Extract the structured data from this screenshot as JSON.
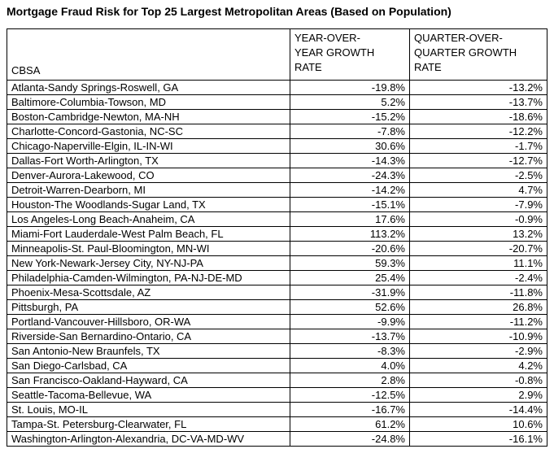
{
  "title": "Mortgage Fraud Risk for Top 25 Largest Metropolitan Areas (Based on Population)",
  "colors": {
    "text": "#000000",
    "border": "#000000",
    "background": "#ffffff"
  },
  "chart_data": {
    "type": "table",
    "title": "Mortgage Fraud Risk for Top 25 Largest Metropolitan Areas (Based on Population)",
    "columns": [
      {
        "id": "cbsa",
        "label": "CBSA"
      },
      {
        "id": "yoy",
        "label": "YEAR-OVER-\nYEAR GROWTH\nRATE"
      },
      {
        "id": "qoq",
        "label": "QUARTER-OVER-\nQUARTER GROWTH\nRATE"
      }
    ],
    "rows": [
      {
        "cbsa": "Atlanta-Sandy Springs-Roswell, GA",
        "yoy": "-19.8%",
        "qoq": "-13.2%"
      },
      {
        "cbsa": "Baltimore-Columbia-Towson, MD",
        "yoy": "5.2%",
        "qoq": "-13.7%"
      },
      {
        "cbsa": "Boston-Cambridge-Newton, MA-NH",
        "yoy": "-15.2%",
        "qoq": "-18.6%"
      },
      {
        "cbsa": "Charlotte-Concord-Gastonia, NC-SC",
        "yoy": "-7.8%",
        "qoq": "-12.2%"
      },
      {
        "cbsa": "Chicago-Naperville-Elgin, IL-IN-WI",
        "yoy": "30.6%",
        "qoq": "-1.7%"
      },
      {
        "cbsa": "Dallas-Fort Worth-Arlington, TX",
        "yoy": "-14.3%",
        "qoq": "-12.7%"
      },
      {
        "cbsa": "Denver-Aurora-Lakewood, CO",
        "yoy": "-24.3%",
        "qoq": "-2.5%"
      },
      {
        "cbsa": "Detroit-Warren-Dearborn, MI",
        "yoy": "-14.2%",
        "qoq": "4.7%"
      },
      {
        "cbsa": "Houston-The Woodlands-Sugar Land, TX",
        "yoy": "-15.1%",
        "qoq": "-7.9%"
      },
      {
        "cbsa": "Los Angeles-Long Beach-Anaheim, CA",
        "yoy": "17.6%",
        "qoq": "-0.9%"
      },
      {
        "cbsa": "Miami-Fort Lauderdale-West Palm Beach, FL",
        "yoy": "113.2%",
        "qoq": "13.2%"
      },
      {
        "cbsa": "Minneapolis-St. Paul-Bloomington, MN-WI",
        "yoy": "-20.6%",
        "qoq": "-20.7%"
      },
      {
        "cbsa": "New York-Newark-Jersey City, NY-NJ-PA",
        "yoy": "59.3%",
        "qoq": "11.1%"
      },
      {
        "cbsa": "Philadelphia-Camden-Wilmington, PA-NJ-DE-MD",
        "yoy": "25.4%",
        "qoq": "-2.4%"
      },
      {
        "cbsa": "Phoenix-Mesa-Scottsdale, AZ",
        "yoy": "-31.9%",
        "qoq": "-11.8%"
      },
      {
        "cbsa": "Pittsburgh, PA",
        "yoy": "52.6%",
        "qoq": "26.8%"
      },
      {
        "cbsa": "Portland-Vancouver-Hillsboro, OR-WA",
        "yoy": "-9.9%",
        "qoq": "-11.2%"
      },
      {
        "cbsa": "Riverside-San Bernardino-Ontario, CA",
        "yoy": "-13.7%",
        "qoq": "-10.9%"
      },
      {
        "cbsa": "San Antonio-New Braunfels, TX",
        "yoy": "-8.3%",
        "qoq": "-2.9%"
      },
      {
        "cbsa": "San Diego-Carlsbad, CA",
        "yoy": "4.0%",
        "qoq": "4.2%"
      },
      {
        "cbsa": "San Francisco-Oakland-Hayward, CA",
        "yoy": "2.8%",
        "qoq": "-0.8%"
      },
      {
        "cbsa": "Seattle-Tacoma-Bellevue, WA",
        "yoy": "-12.5%",
        "qoq": "2.9%"
      },
      {
        "cbsa": "St. Louis, MO-IL",
        "yoy": "-16.7%",
        "qoq": "-14.4%"
      },
      {
        "cbsa": "Tampa-St. Petersburg-Clearwater, FL",
        "yoy": "61.2%",
        "qoq": "10.6%"
      },
      {
        "cbsa": "Washington-Arlington-Alexandria, DC-VA-MD-WV",
        "yoy": "-24.8%",
        "qoq": "-16.1%"
      }
    ]
  }
}
